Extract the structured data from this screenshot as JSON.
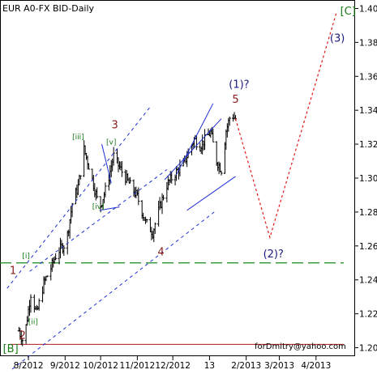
{
  "chart_data": {
    "type": "ohlc",
    "title": "EUR A0-FX BID-Daily",
    "watermark": "forDmitry@yahoo.com",
    "ylim": [
      1.195,
      1.405
    ],
    "y_ticks": [
      "1.20",
      "1.22",
      "1.24",
      "1.26",
      "1.28",
      "1.30",
      "1.32",
      "1.34",
      "1.36",
      "1.38",
      "1.40"
    ],
    "y_tick_values": [
      1.2,
      1.22,
      1.24,
      1.26,
      1.28,
      1.3,
      1.32,
      1.34,
      1.36,
      1.38,
      1.4
    ],
    "x_range": [
      "2012-07-08",
      "2013-05-04"
    ],
    "x_ticks": [
      {
        "label": "8/2012",
        "date": "2012-08-01"
      },
      {
        "label": "9/2012",
        "date": "2012-09-01"
      },
      {
        "label": "10/2012",
        "date": "2012-10-01"
      },
      {
        "label": "11/2012",
        "date": "2012-11-01"
      },
      {
        "label": "12/2012",
        "date": "2012-12-01"
      },
      {
        "label": "13",
        "date": "2013-01-01"
      },
      {
        "label": "2/2013",
        "date": "2013-02-01"
      },
      {
        "label": "3/2013",
        "date": "2013-03-01"
      },
      {
        "label": "4/2013",
        "date": "2013-04-01"
      }
    ],
    "colors": {
      "bars": "#000000",
      "channel": "#1e2fd6",
      "forecast": "#e01818",
      "support_line": "#1a8a1a",
      "bottom_line": "#b01818",
      "major_label": "#8b1a1a",
      "minor_label": "#1a7a1a",
      "intermediate_label": "#1a1a80"
    },
    "price_path": [
      [
        "2012-07-24",
        1.21
      ],
      [
        "2012-07-28",
        1.203
      ],
      [
        "2012-08-03",
        1.232
      ],
      [
        "2012-08-08",
        1.22
      ],
      [
        "2012-08-14",
        1.238
      ],
      [
        "2012-08-20",
        1.247
      ],
      [
        "2012-08-25",
        1.256
      ],
      [
        "2012-09-02",
        1.262
      ],
      [
        "2012-09-07",
        1.285
      ],
      [
        "2012-09-12",
        1.295
      ],
      [
        "2012-09-17",
        1.317
      ],
      [
        "2012-09-22",
        1.305
      ],
      [
        "2012-09-30",
        1.282
      ],
      [
        "2012-10-06",
        1.295
      ],
      [
        "2012-10-12",
        1.313
      ],
      [
        "2012-10-18",
        1.305
      ],
      [
        "2012-10-24",
        1.298
      ],
      [
        "2012-11-01",
        1.289
      ],
      [
        "2012-11-08",
        1.274
      ],
      [
        "2012-11-14",
        1.268
      ],
      [
        "2012-11-20",
        1.283
      ],
      [
        "2012-11-26",
        1.296
      ],
      [
        "2012-12-02",
        1.302
      ],
      [
        "2012-12-10",
        1.308
      ],
      [
        "2012-12-19",
        1.323
      ],
      [
        "2012-12-24",
        1.319
      ],
      [
        "2013-01-02",
        1.327
      ],
      [
        "2013-01-07",
        1.31
      ],
      [
        "2013-01-11",
        1.305
      ],
      [
        "2013-01-15",
        1.328
      ],
      [
        "2013-01-19",
        1.338
      ],
      [
        "2013-01-23",
        1.335
      ]
    ],
    "forecast_path": [
      [
        "2013-01-23",
        1.335
      ],
      [
        "2013-02-21",
        1.265
      ],
      [
        "2013-04-18",
        1.397
      ]
    ],
    "channel_lines": [
      [
        [
          "2012-07-14",
          1.235
        ],
        [
          "2012-11-13",
          1.343
        ]
      ],
      [
        [
          "2012-07-14",
          1.185
        ],
        [
          "2013-01-05",
          1.28
        ]
      ],
      [
        [
          "2012-08-02",
          1.245
        ],
        [
          "2012-11-26",
          1.305
        ]
      ],
      [
        [
          "2012-12-04",
          1.302
        ],
        [
          "2013-01-04",
          1.344
        ]
      ],
      [
        [
          "2012-11-24",
          1.299
        ],
        [
          "2013-01-11",
          1.335
        ]
      ],
      [
        [
          "2012-12-13",
          1.281
        ],
        [
          "2013-01-23",
          1.301
        ]
      ],
      [
        [
          "2012-10-02",
          1.32
        ],
        [
          "2012-10-10",
          1.297
        ]
      ],
      [
        [
          "2012-09-30",
          1.281
        ],
        [
          "2012-10-17",
          1.283
        ]
      ]
    ],
    "horizontal_lines": [
      {
        "y": 1.25,
        "style": "dashed",
        "color_key": "support_line"
      },
      {
        "y": 1.202,
        "style": "solid",
        "color_key": "bottom_line"
      }
    ],
    "wave_labels": [
      {
        "text": "[B]",
        "date": "2012-07-17",
        "y": 1.199,
        "color_key": "minor_label",
        "size": 13
      },
      {
        "text": "[C]",
        "date": "2013-04-28",
        "y": 1.398,
        "color_key": "minor_label",
        "size": 13
      },
      {
        "text": "1",
        "date": "2012-07-19",
        "y": 1.245,
        "color_key": "major_label",
        "size": 13
      },
      {
        "text": "2",
        "date": "2012-07-27",
        "y": 1.207,
        "color_key": "major_label",
        "size": 13
      },
      {
        "text": "3",
        "date": "2012-10-13",
        "y": 1.331,
        "color_key": "major_label",
        "size": 13
      },
      {
        "text": "4",
        "date": "2012-11-21",
        "y": 1.256,
        "color_key": "major_label",
        "size": 13
      },
      {
        "text": "5",
        "date": "2013-01-23",
        "y": 1.346,
        "color_key": "major_label",
        "size": 13
      },
      {
        "text": "[i]",
        "date": "2012-07-30",
        "y": 1.254,
        "color_key": "minor_label",
        "size": 9
      },
      {
        "text": "[ii]",
        "date": "2012-08-05",
        "y": 1.215,
        "color_key": "minor_label",
        "size": 9
      },
      {
        "text": "[iii]",
        "date": "2012-09-12",
        "y": 1.324,
        "color_key": "minor_label",
        "size": 9
      },
      {
        "text": "[iv]",
        "date": "2012-09-29",
        "y": 1.283,
        "color_key": "minor_label",
        "size": 9
      },
      {
        "text": "[v]",
        "date": "2012-10-10",
        "y": 1.321,
        "color_key": "minor_label",
        "size": 9
      },
      {
        "text": "(1)?",
        "date": "2013-01-26",
        "y": 1.355,
        "color_key": "intermediate_label",
        "size": 13
      },
      {
        "text": "(2)?",
        "date": "2013-02-24",
        "y": 1.255,
        "color_key": "intermediate_label",
        "size": 13
      },
      {
        "text": "(3)",
        "date": "2013-04-19",
        "y": 1.382,
        "color_key": "intermediate_label",
        "size": 13
      }
    ]
  }
}
